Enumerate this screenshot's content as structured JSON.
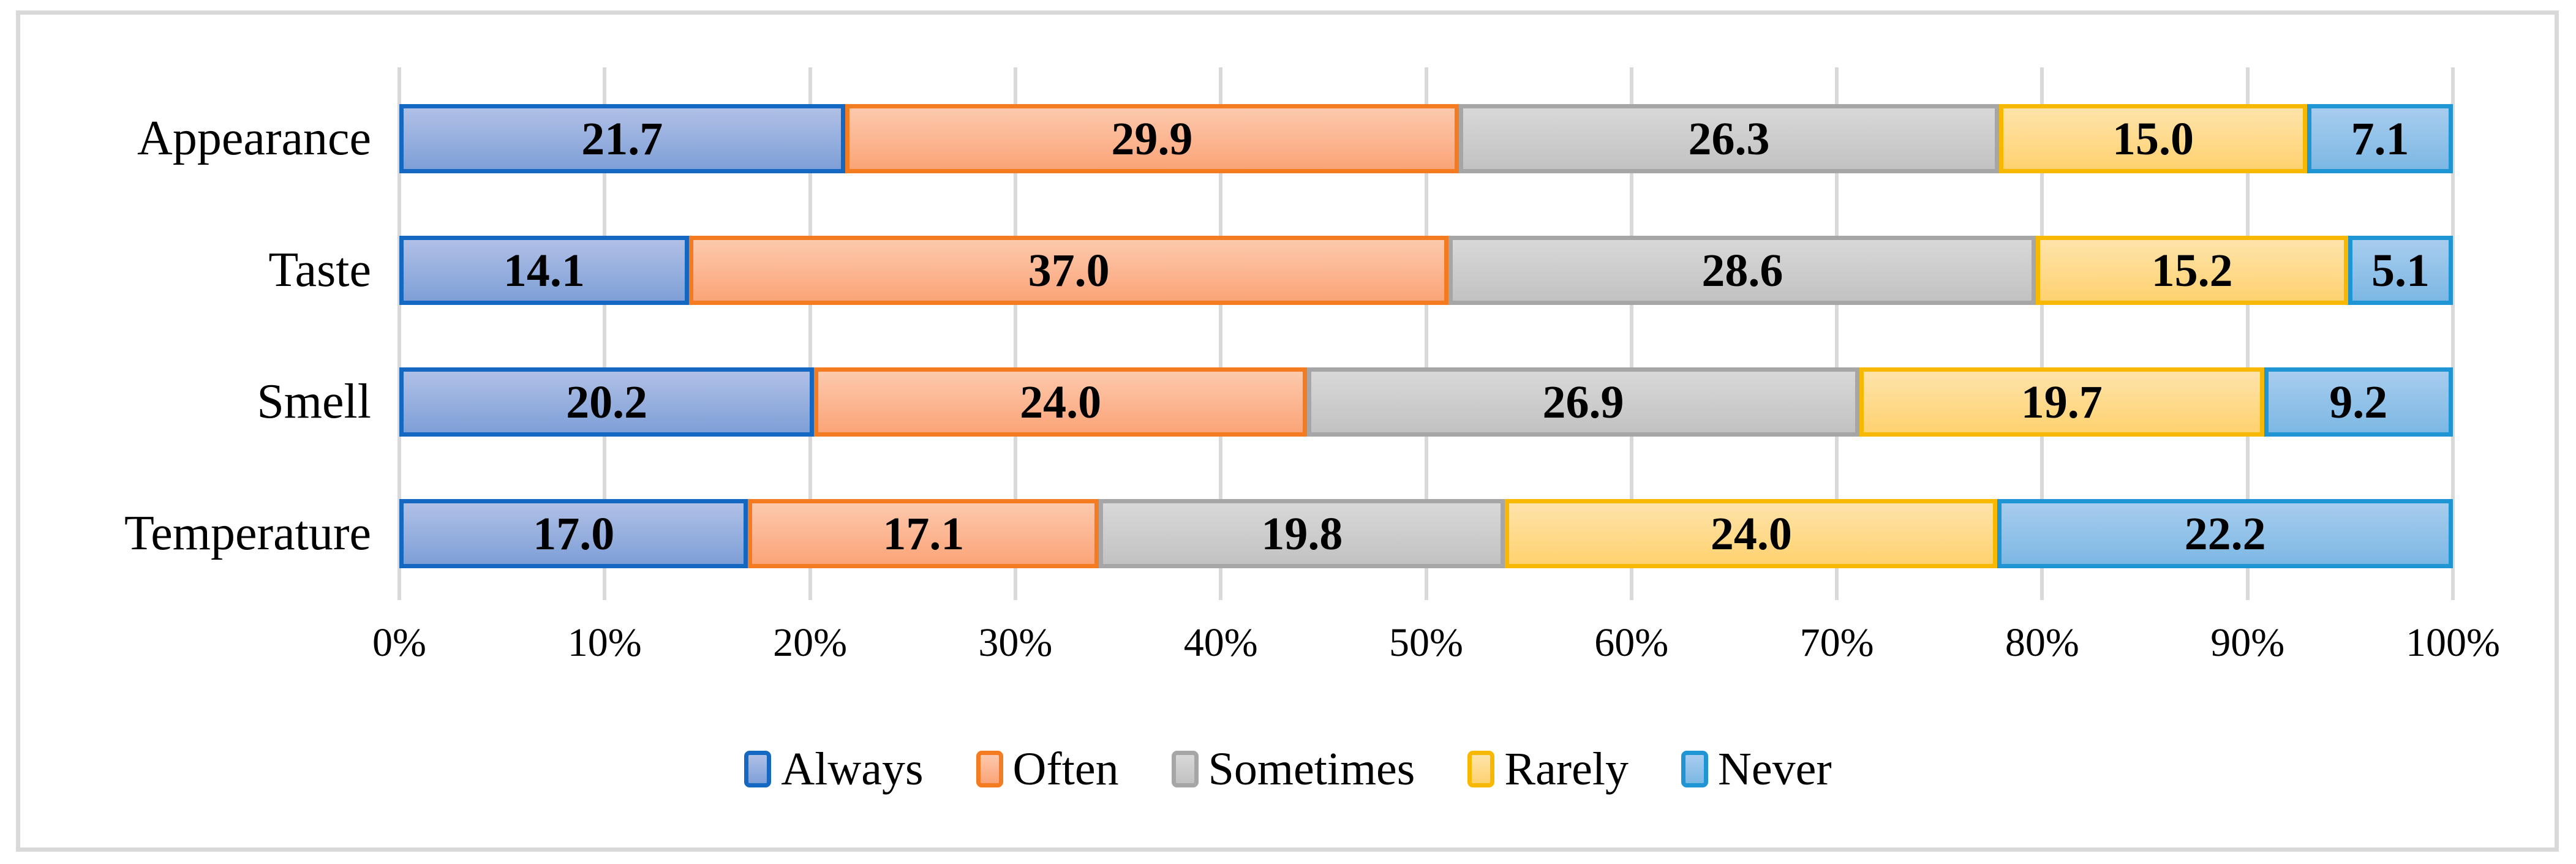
{
  "figure": {
    "background": "#FFFFFF",
    "border_color": "#D9D9D9",
    "gridline_color": "#D9D9D9"
  },
  "chart_data": {
    "type": "bar",
    "orientation": "horizontal",
    "stacked": true,
    "title": "",
    "xlabel": "",
    "ylabel": "",
    "unit": "%",
    "xlim": [
      0,
      100
    ],
    "grid": true,
    "legend_position": "bottom",
    "value_label_color": "#000000",
    "categories": [
      "Appearance",
      "Taste",
      "Smell",
      "Temperature"
    ],
    "x_ticks": [
      "0%",
      "10%",
      "20%",
      "30%",
      "40%",
      "50%",
      "60%",
      "70%",
      "80%",
      "90%",
      "100%"
    ],
    "series": [
      {
        "name": "Always",
        "fill_top": "#B0C0E6",
        "fill_bottom": "#7E9FD7",
        "border": "#1568C1",
        "values": [
          21.7,
          14.1,
          20.2,
          17.0
        ],
        "labels": [
          "21.7",
          "14.1",
          "20.2",
          "17.0"
        ]
      },
      {
        "name": "Often",
        "fill_top": "#FCC9AD",
        "fill_bottom": "#FBA478",
        "border": "#F57B20",
        "values": [
          29.9,
          37.0,
          24.0,
          17.1
        ],
        "labels": [
          "29.9",
          "37.0",
          "24.0",
          "17.1"
        ]
      },
      {
        "name": "Sometimes",
        "fill_top": "#D8D8D8",
        "fill_bottom": "#C2C2C2",
        "border": "#A6A6A6",
        "values": [
          26.3,
          28.6,
          26.9,
          19.8
        ],
        "labels": [
          "26.3",
          "28.6",
          "26.9",
          "19.8"
        ]
      },
      {
        "name": "Rarely",
        "fill_top": "#FEE3AA",
        "fill_bottom": "#FFD270",
        "border": "#F8B800",
        "values": [
          15.0,
          15.2,
          19.7,
          24.0
        ],
        "labels": [
          "15.0",
          "15.2",
          "19.7",
          "24.0"
        ]
      },
      {
        "name": "Never",
        "fill_top": "#A8CCEE",
        "fill_bottom": "#7CB8E4",
        "border": "#2095D3",
        "values": [
          7.1,
          5.1,
          9.2,
          22.2
        ],
        "labels": [
          "7.1",
          "5.1",
          "9.2",
          "22.2"
        ]
      }
    ]
  }
}
